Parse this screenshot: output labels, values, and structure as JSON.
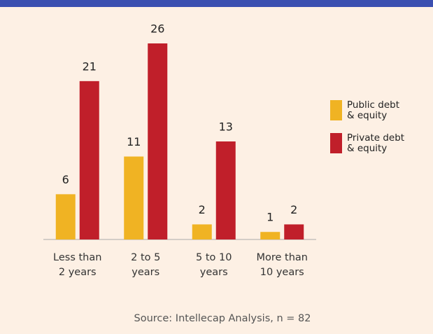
{
  "chart_data": {
    "type": "bar",
    "categories": [
      "Less than\n2 years",
      "2 to 5\nyears",
      "5 to 10\nyears",
      "More than\n10 years"
    ],
    "series": [
      {
        "name": "Public debt\n& equity",
        "color": "#f0b323",
        "values": [
          6,
          11,
          2,
          1
        ]
      },
      {
        "name": "Private debt\n& equity",
        "color": "#c01f2a",
        "values": [
          21,
          26,
          13,
          2
        ]
      }
    ],
    "ylim": [
      0,
      26
    ],
    "source": "Source: Intellecap Analysis, n = 82"
  }
}
